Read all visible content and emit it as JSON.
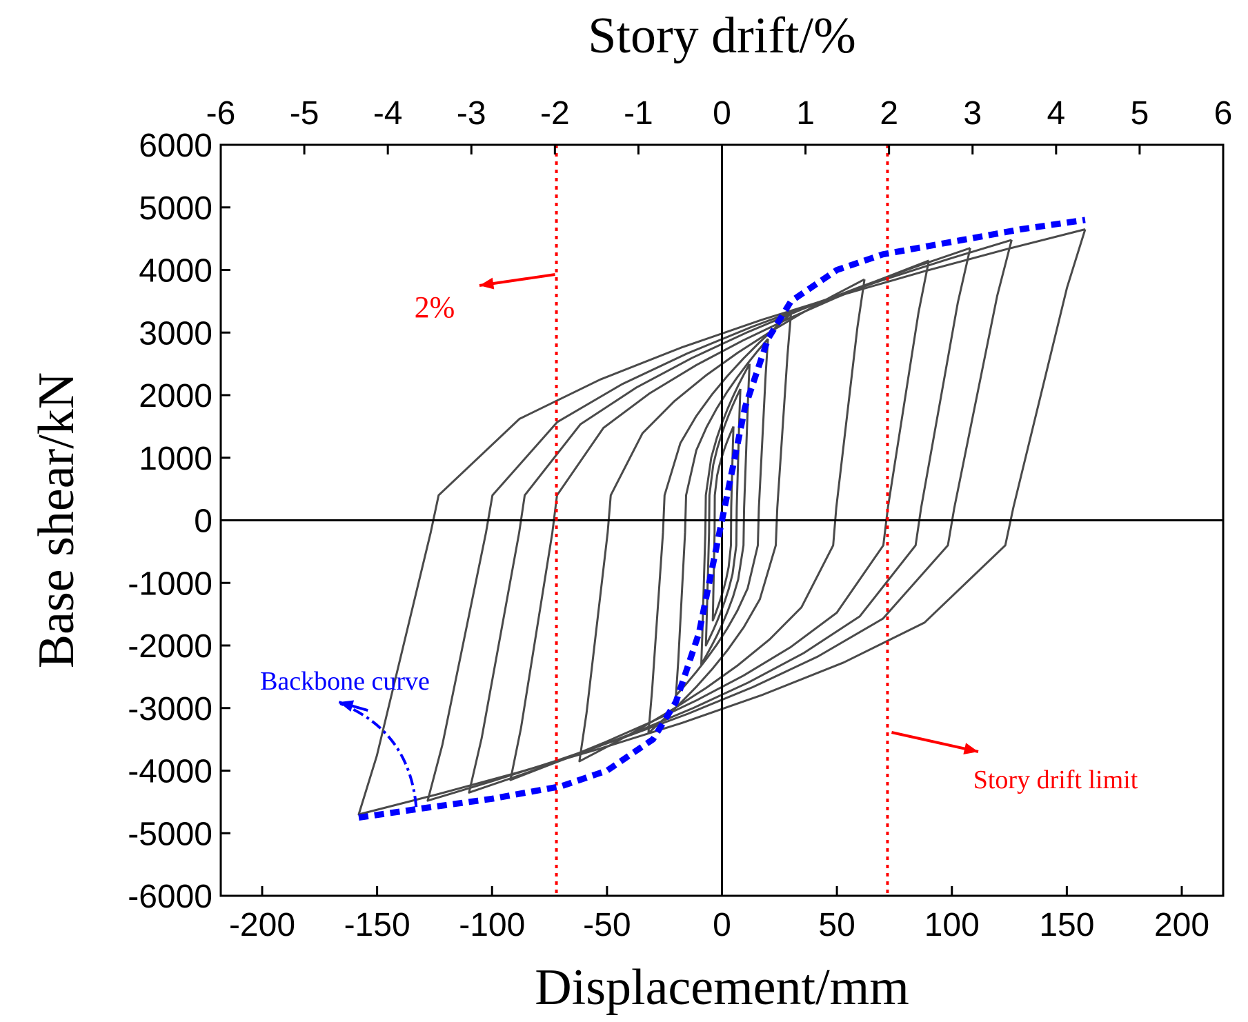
{
  "chart_data": {
    "type": "line",
    "title": "",
    "xlabel": "Displacement/mm",
    "ylabel": "Base shear/kN",
    "x2label": "Story drift/%",
    "xlim": [
      -218,
      218
    ],
    "ylim": [
      -6000,
      6000
    ],
    "x2lim": [
      -6,
      6
    ],
    "xticks": [
      -200,
      -150,
      -100,
      -50,
      0,
      50,
      100,
      150,
      200
    ],
    "xtick_labels": [
      "-200",
      "-150",
      "-100",
      "-50",
      "0",
      "50",
      "100",
      "150",
      "200"
    ],
    "yticks": [
      -6000,
      -5000,
      -4000,
      -3000,
      -2000,
      -1000,
      0,
      1000,
      2000,
      3000,
      4000,
      5000,
      6000
    ],
    "ytick_labels": [
      "-6000",
      "-5000",
      "-4000",
      "-3000",
      "-2000",
      "-1000",
      "0",
      "1000",
      "2000",
      "3000",
      "4000",
      "5000",
      "6000"
    ],
    "x2ticks": [
      -6,
      -5,
      -4,
      -3,
      -2,
      -1,
      0,
      1,
      2,
      3,
      4,
      5,
      6
    ],
    "x2tick_labels": [
      "-6",
      "-5",
      "-4",
      "-3",
      "-2",
      "-1",
      "0",
      "1",
      "2",
      "3",
      "4",
      "5",
      "6"
    ],
    "grid": false,
    "colors": {
      "hysteresis": "#4a4a4a",
      "backbone": "#0000ff",
      "limit": "#ff0000",
      "axes": "#000000"
    },
    "hysteresis_loops": [
      {
        "amp_pos": 5,
        "amp_neg": 4,
        "f_pos": 1500,
        "f_neg": -1600
      },
      {
        "amp_pos": 8,
        "amp_neg": 7,
        "f_pos": 2100,
        "f_neg": -2000
      },
      {
        "amp_pos": 12,
        "amp_neg": 9,
        "f_pos": 2500,
        "f_neg": -2300
      },
      {
        "amp_pos": 20,
        "amp_neg": 20,
        "f_pos": 2900,
        "f_neg": -2800
      },
      {
        "amp_pos": 30,
        "amp_neg": 32,
        "f_pos": 3300,
        "f_neg": -3400
      },
      {
        "amp_pos": 62,
        "amp_neg": 62,
        "f_pos": 3850,
        "f_neg": -3850
      },
      {
        "amp_pos": 90,
        "amp_neg": 92,
        "f_pos": 4150,
        "f_neg": -4150
      },
      {
        "amp_pos": 108,
        "amp_neg": 110,
        "f_pos": 4350,
        "f_neg": -4350
      },
      {
        "amp_pos": 126,
        "amp_neg": 128,
        "f_pos": 4480,
        "f_neg": -4480
      },
      {
        "amp_pos": 158,
        "amp_neg": 158,
        "f_pos": 4650,
        "f_neg": -4700
      }
    ],
    "backbone_curve": {
      "x": [
        -158,
        -130,
        -100,
        -70,
        -50,
        -30,
        -20,
        -10,
        -5,
        0,
        5,
        10,
        20,
        30,
        50,
        70,
        100,
        130,
        158
      ],
      "y": [
        -4750,
        -4600,
        -4450,
        -4250,
        -4000,
        -3500,
        -2900,
        -1800,
        -900,
        0,
        900,
        1800,
        2900,
        3500,
        4000,
        4250,
        4450,
        4650,
        4800
      ]
    },
    "reference_lines": [
      {
        "x": -72,
        "label": "2%"
      },
      {
        "x": 72,
        "label": "Story drift limit"
      }
    ],
    "annotations": [
      {
        "text": "2%",
        "target": "left drift limit"
      },
      {
        "text": "Story drift limit",
        "target": "right drift limit"
      },
      {
        "text": "Backbone curve",
        "target": "backbone"
      }
    ]
  }
}
